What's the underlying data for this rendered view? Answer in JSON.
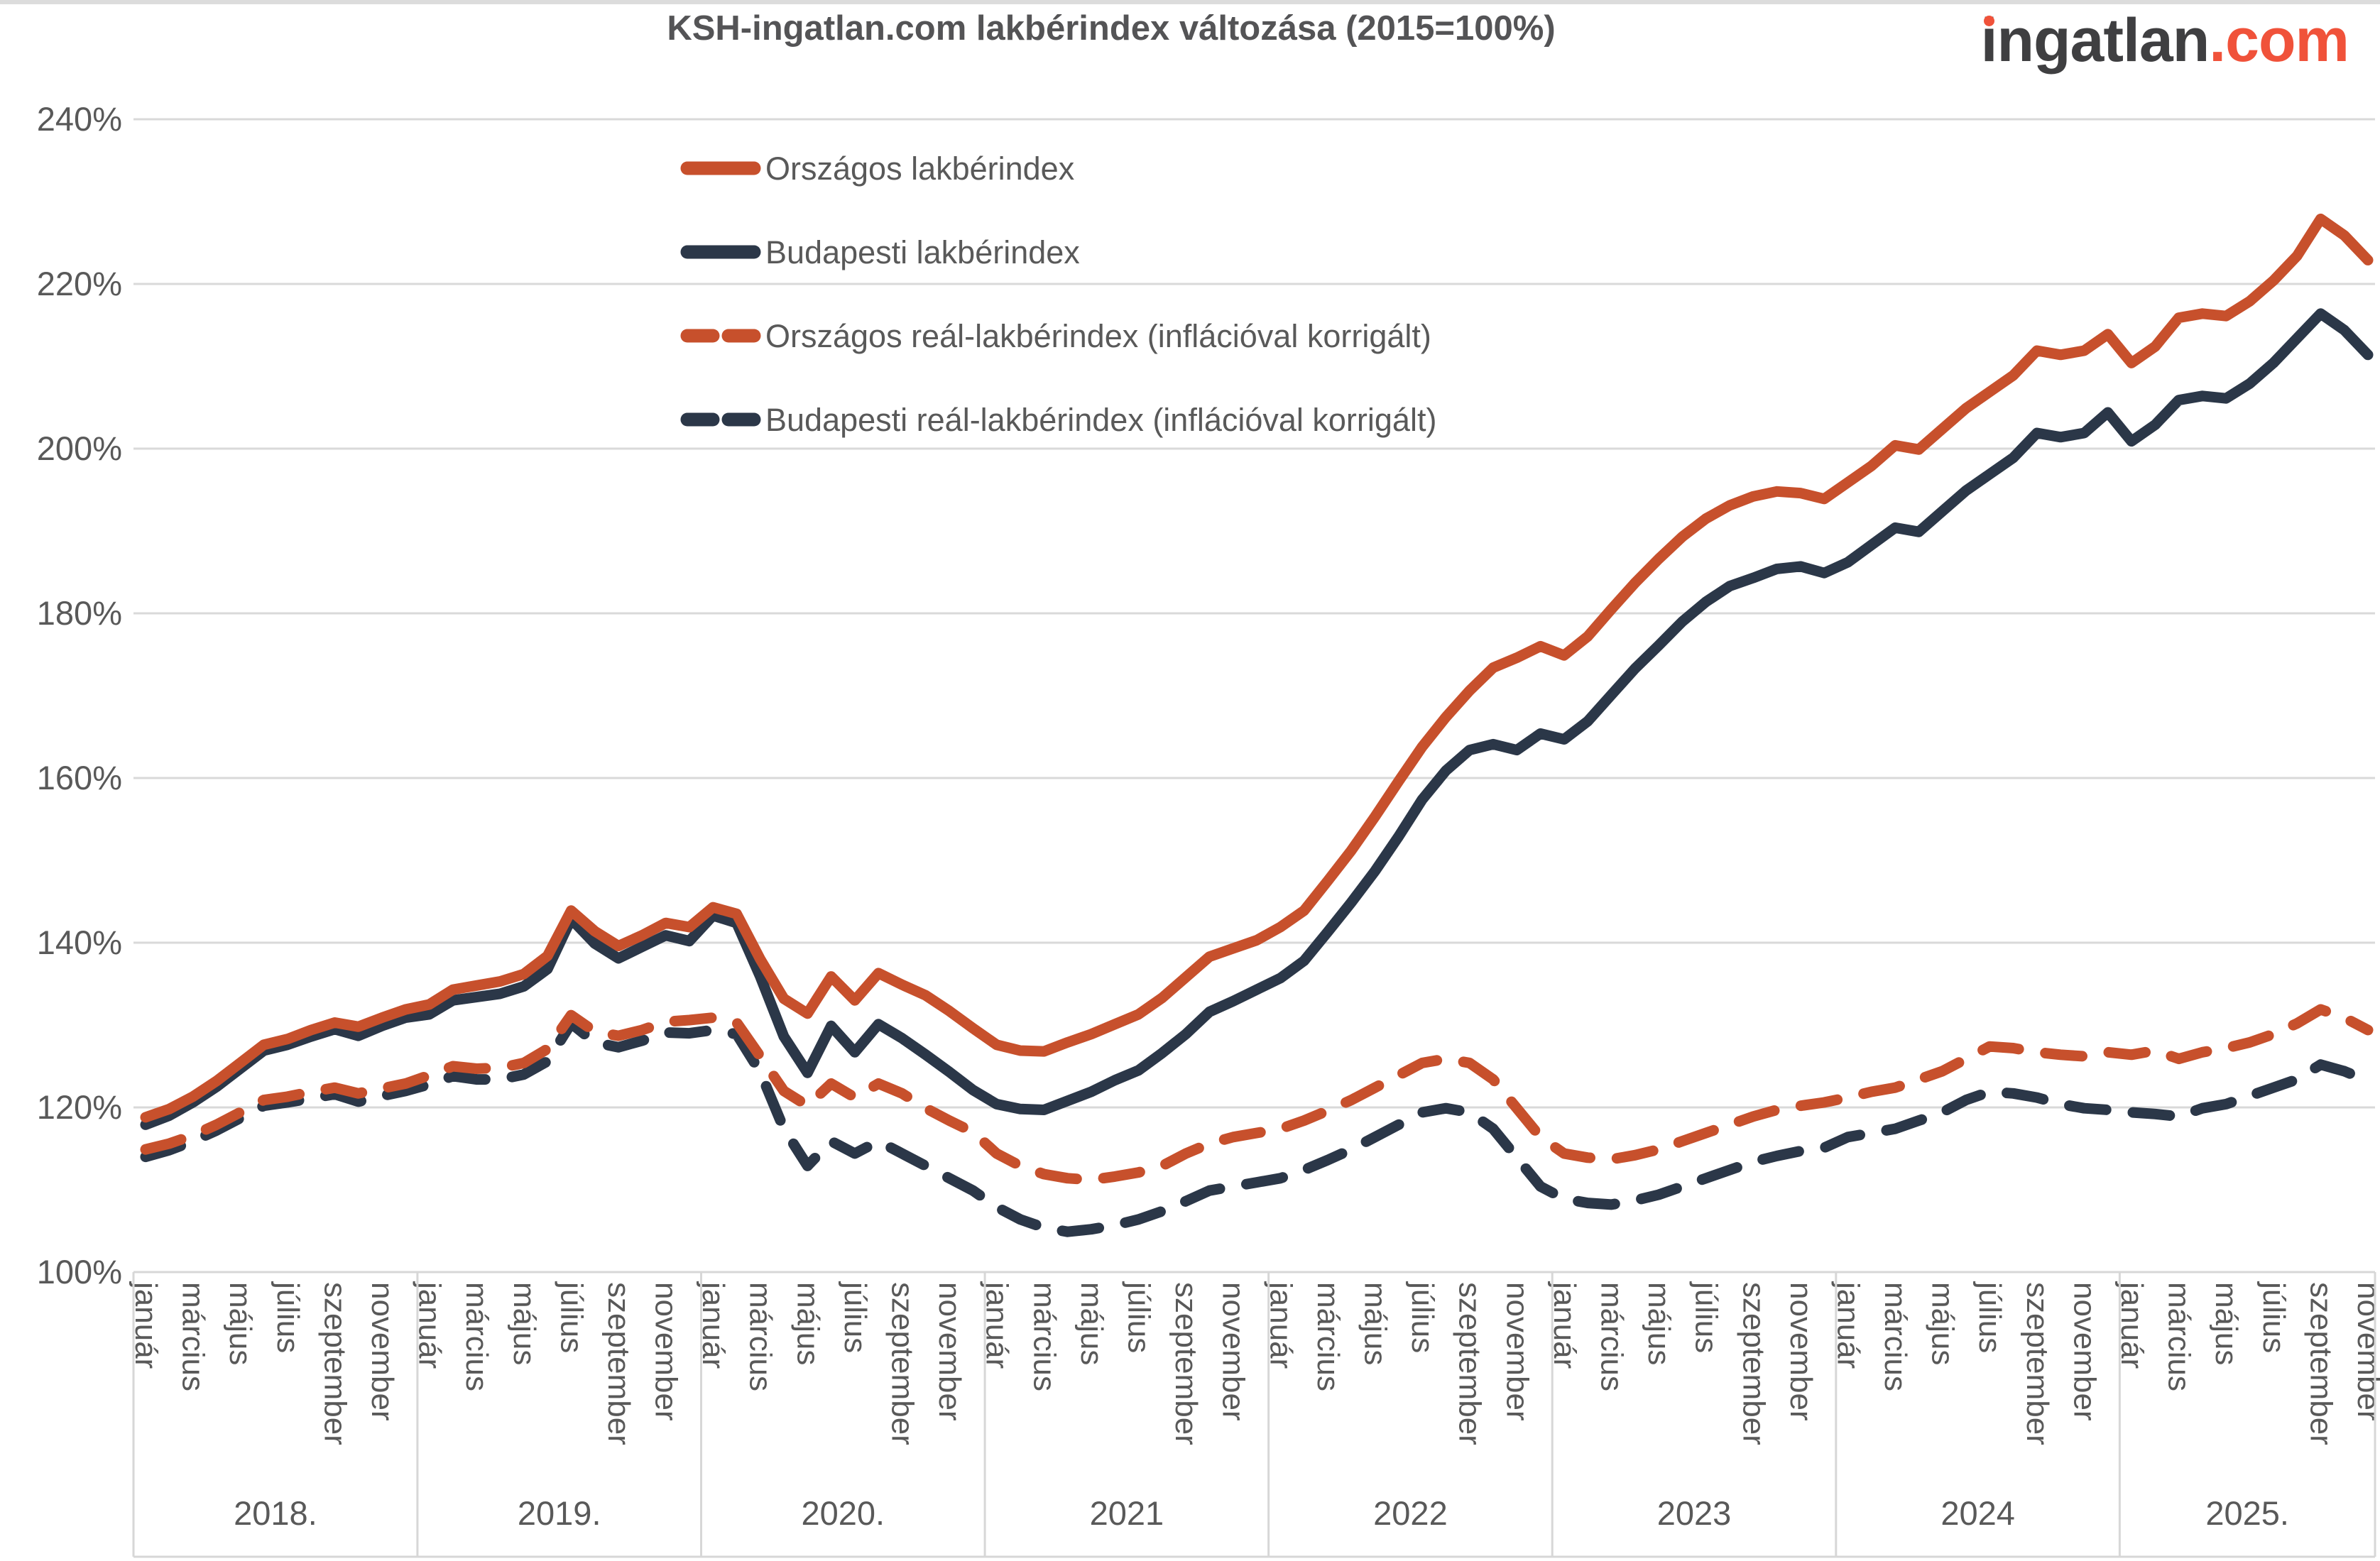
{
  "header": {
    "title": "KSH-ingatlan.com lakbérindex változása (2015=100%)",
    "logo": {
      "i": "i",
      "rest": "ngatlan",
      "suffix": ".com"
    }
  },
  "colors": {
    "line_orange": "#c7502c",
    "line_navy": "#2b3748",
    "grid": "#d9d9d9",
    "box_line": "#d7d7d7",
    "axis_text": "#595959",
    "title_text": "#545456",
    "logo_dark": "#3f3f41",
    "logo_orange": "#f0523a"
  },
  "chart_data": {
    "type": "line",
    "title": "KSH-ingatlan.com lakbérindex változása (2015=100%)",
    "xlabel": "",
    "ylabel": "",
    "ylim": [
      100,
      240
    ],
    "grid": "horizontal",
    "legend_position": "top-center-vertical",
    "y_axis": {
      "ticks": [
        "240%",
        "220%",
        "200%",
        "180%",
        "160%",
        "140%",
        "120%",
        "100%"
      ],
      "tick_values": [
        240,
        220,
        200,
        180,
        160,
        140,
        120,
        100
      ]
    },
    "x_axis": {
      "unit": "month",
      "first_point": "2018 január",
      "last_point": "2025 november",
      "month_tick_labels": [
        "január",
        "március",
        "május",
        "július",
        "szeptember",
        "november"
      ],
      "years": [
        {
          "label": "2018.",
          "months": 12
        },
        {
          "label": "2019.",
          "months": 12
        },
        {
          "label": "2020.",
          "months": 12
        },
        {
          "label": "2021",
          "months": 12
        },
        {
          "label": "2022",
          "months": 12
        },
        {
          "label": "2023",
          "months": 12
        },
        {
          "label": "2024",
          "months": 12
        },
        {
          "label": "2025.",
          "months": 11
        }
      ]
    },
    "series": [
      {
        "name": "Országos lakbérindex",
        "color": "#c7502c",
        "dash": false,
        "values": [
          118.8,
          119.8,
          121.3,
          123.2,
          125.4,
          127.6,
          128.3,
          129.4,
          130.3,
          129.8,
          130.9,
          131.9,
          132.5,
          134.3,
          134.8,
          135.3,
          136.2,
          138.4,
          143.9,
          141.4,
          139.6,
          140.9,
          142.4,
          141.9,
          144.3,
          143.5,
          138.0,
          133.2,
          131.4,
          135.9,
          133.0,
          136.3,
          134.9,
          133.6,
          131.7,
          129.6,
          127.6,
          126.9,
          126.8,
          127.9,
          128.9,
          130.1,
          131.3,
          133.3,
          135.8,
          138.3,
          139.3,
          140.3,
          141.9,
          143.9,
          147.5,
          151.2,
          155.3,
          159.6,
          163.8,
          167.4,
          170.6,
          173.4,
          174.6,
          176.0,
          174.9,
          177.2,
          180.5,
          183.7,
          186.6,
          189.3,
          191.5,
          193.1,
          194.2,
          194.8,
          194.6,
          193.9,
          195.9,
          197.9,
          200.4,
          199.9,
          202.4,
          204.9,
          206.9,
          208.9,
          211.9,
          211.4,
          211.9,
          213.9,
          210.4,
          212.4,
          215.9,
          216.4,
          216.1,
          217.9,
          220.4,
          223.4,
          227.9,
          225.9,
          222.9
        ]
      },
      {
        "name": "Budapesti lakbérindex",
        "color": "#2b3748",
        "dash": false,
        "values": [
          117.9,
          119.0,
          120.6,
          122.5,
          124.7,
          126.9,
          127.6,
          128.6,
          129.5,
          128.7,
          129.9,
          130.9,
          131.3,
          133.0,
          133.4,
          133.8,
          134.7,
          136.8,
          142.9,
          139.9,
          138.1,
          139.5,
          140.9,
          140.2,
          143.3,
          142.4,
          135.9,
          128.6,
          124.2,
          129.9,
          126.7,
          130.1,
          128.4,
          126.4,
          124.3,
          122.1,
          120.4,
          119.8,
          119.7,
          120.8,
          121.9,
          123.3,
          124.5,
          126.6,
          128.9,
          131.6,
          132.9,
          134.3,
          135.7,
          137.8,
          141.3,
          144.9,
          148.7,
          152.9,
          157.4,
          160.9,
          163.4,
          164.1,
          163.4,
          165.4,
          164.7,
          166.9,
          170.1,
          173.3,
          176.1,
          179.0,
          181.4,
          183.3,
          184.3,
          185.4,
          185.7,
          184.9,
          186.2,
          188.3,
          190.4,
          189.9,
          192.4,
          194.9,
          196.9,
          198.9,
          201.9,
          201.4,
          201.9,
          204.4,
          200.9,
          202.9,
          205.9,
          206.4,
          206.1,
          207.9,
          210.4,
          213.4,
          216.4,
          214.4,
          211.4
        ]
      },
      {
        "name": "Országos reál-lakbérindex (inflációval korrigált)",
        "color": "#c7502c",
        "dash": true,
        "values": [
          114.9,
          115.6,
          116.6,
          117.9,
          119.4,
          120.9,
          121.3,
          121.9,
          122.4,
          121.7,
          122.3,
          122.9,
          123.9,
          125.0,
          124.7,
          124.8,
          125.4,
          127.1,
          131.2,
          129.2,
          128.7,
          129.4,
          130.4,
          130.6,
          130.9,
          130.3,
          126.2,
          122.0,
          120.2,
          122.9,
          121.2,
          122.9,
          121.7,
          119.9,
          118.4,
          117.0,
          114.4,
          112.9,
          111.9,
          111.4,
          111.2,
          111.6,
          112.1,
          112.9,
          114.4,
          115.6,
          116.4,
          116.9,
          117.4,
          118.4,
          119.6,
          120.9,
          122.4,
          123.9,
          125.4,
          125.9,
          125.4,
          123.4,
          119.9,
          116.4,
          114.4,
          113.9,
          113.7,
          114.2,
          114.9,
          115.9,
          116.9,
          117.9,
          118.9,
          119.7,
          120.2,
          120.6,
          121.2,
          121.9,
          122.4,
          123.4,
          124.4,
          125.9,
          127.4,
          127.2,
          126.7,
          126.4,
          126.2,
          126.7,
          126.4,
          126.9,
          125.9,
          126.7,
          127.2,
          127.9,
          128.9,
          130.2,
          131.9,
          130.9,
          129.4
        ]
      },
      {
        "name": "Budapesti reál-lakbérindex (inflációval korrigált)",
        "color": "#2b3748",
        "dash": true,
        "values": [
          114.0,
          114.8,
          115.9,
          117.2,
          118.7,
          120.2,
          120.6,
          121.1,
          121.6,
          120.7,
          121.4,
          122.0,
          122.8,
          123.8,
          123.4,
          123.4,
          124.0,
          125.6,
          130.2,
          127.9,
          127.3,
          128.1,
          129.1,
          129.0,
          129.4,
          128.9,
          124.3,
          117.4,
          112.9,
          115.9,
          114.4,
          115.9,
          114.4,
          112.9,
          111.4,
          109.9,
          107.9,
          106.4,
          105.4,
          104.9,
          105.2,
          105.7,
          106.4,
          107.4,
          108.6,
          109.9,
          110.4,
          110.9,
          111.4,
          112.4,
          113.6,
          114.9,
          116.4,
          117.9,
          119.4,
          119.9,
          119.4,
          117.4,
          113.9,
          110.4,
          108.9,
          108.4,
          108.2,
          108.7,
          109.4,
          110.4,
          111.4,
          112.4,
          113.4,
          114.1,
          114.7,
          115.1,
          116.4,
          116.9,
          117.4,
          118.4,
          119.4,
          120.9,
          121.9,
          121.7,
          121.2,
          120.4,
          119.9,
          119.7,
          119.4,
          119.2,
          118.9,
          119.9,
          120.4,
          121.4,
          122.4,
          123.4,
          125.2,
          124.4,
          123.2
        ]
      }
    ]
  }
}
